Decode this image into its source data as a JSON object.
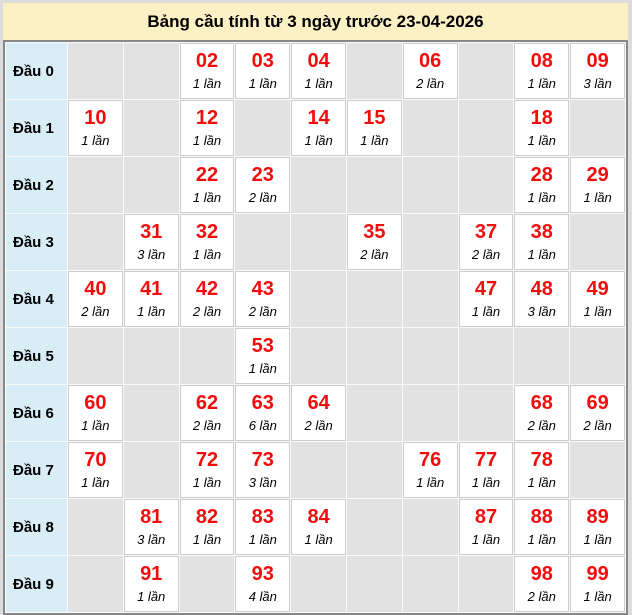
{
  "title": "Bảng cầu tính từ 3 ngày trước 23-04-2026",
  "colors": {
    "page_bg": "#dcdcdc",
    "title_bg": "#fcf1c5",
    "table_border": "#878787",
    "grid_bg": "#fafafa",
    "row_header_bg": "#d9edf7",
    "empty_cell_bg": "#e2e2e2",
    "filled_cell_bg": "#ffffff",
    "filled_cell_border": "#cccccc",
    "number_color": "#f20d0d",
    "text_color": "#000000"
  },
  "rows": [
    {
      "label": "Đầu 0",
      "cells": [
        null,
        null,
        {
          "number": "02",
          "count": "1 lần"
        },
        {
          "number": "03",
          "count": "1 lần"
        },
        {
          "number": "04",
          "count": "1 lần"
        },
        null,
        {
          "number": "06",
          "count": "2 lần"
        },
        null,
        {
          "number": "08",
          "count": "1 lần"
        },
        {
          "number": "09",
          "count": "3 lần"
        }
      ]
    },
    {
      "label": "Đầu 1",
      "cells": [
        {
          "number": "10",
          "count": "1 lần"
        },
        null,
        {
          "number": "12",
          "count": "1 lần"
        },
        null,
        {
          "number": "14",
          "count": "1 lần"
        },
        {
          "number": "15",
          "count": "1 lần"
        },
        null,
        null,
        {
          "number": "18",
          "count": "1 lần"
        },
        null
      ]
    },
    {
      "label": "Đầu 2",
      "cells": [
        null,
        null,
        {
          "number": "22",
          "count": "1 lần"
        },
        {
          "number": "23",
          "count": "2 lần"
        },
        null,
        null,
        null,
        null,
        {
          "number": "28",
          "count": "1 lần"
        },
        {
          "number": "29",
          "count": "1 lần"
        }
      ]
    },
    {
      "label": "Đầu 3",
      "cells": [
        null,
        {
          "number": "31",
          "count": "3 lần"
        },
        {
          "number": "32",
          "count": "1 lần"
        },
        null,
        null,
        {
          "number": "35",
          "count": "2 lần"
        },
        null,
        {
          "number": "37",
          "count": "2 lần"
        },
        {
          "number": "38",
          "count": "1 lần"
        },
        null
      ]
    },
    {
      "label": "Đầu 4",
      "cells": [
        {
          "number": "40",
          "count": "2 lần"
        },
        {
          "number": "41",
          "count": "1 lần"
        },
        {
          "number": "42",
          "count": "2 lần"
        },
        {
          "number": "43",
          "count": "2 lần"
        },
        null,
        null,
        null,
        {
          "number": "47",
          "count": "1 lần"
        },
        {
          "number": "48",
          "count": "3 lần"
        },
        {
          "number": "49",
          "count": "1 lần"
        }
      ]
    },
    {
      "label": "Đầu 5",
      "cells": [
        null,
        null,
        null,
        {
          "number": "53",
          "count": "1 lần"
        },
        null,
        null,
        null,
        null,
        null,
        null
      ]
    },
    {
      "label": "Đầu 6",
      "cells": [
        {
          "number": "60",
          "count": "1 lần"
        },
        null,
        {
          "number": "62",
          "count": "2 lần"
        },
        {
          "number": "63",
          "count": "6 lần"
        },
        {
          "number": "64",
          "count": "2 lần"
        },
        null,
        null,
        null,
        {
          "number": "68",
          "count": "2 lần"
        },
        {
          "number": "69",
          "count": "2 lần"
        }
      ]
    },
    {
      "label": "Đầu 7",
      "cells": [
        {
          "number": "70",
          "count": "1 lần"
        },
        null,
        {
          "number": "72",
          "count": "1 lần"
        },
        {
          "number": "73",
          "count": "3 lần"
        },
        null,
        null,
        {
          "number": "76",
          "count": "1 lần"
        },
        {
          "number": "77",
          "count": "1 lần"
        },
        {
          "number": "78",
          "count": "1 lần"
        },
        null
      ]
    },
    {
      "label": "Đầu 8",
      "cells": [
        null,
        {
          "number": "81",
          "count": "3 lần"
        },
        {
          "number": "82",
          "count": "1 lần"
        },
        {
          "number": "83",
          "count": "1 lần"
        },
        {
          "number": "84",
          "count": "1 lần"
        },
        null,
        null,
        {
          "number": "87",
          "count": "1 lần"
        },
        {
          "number": "88",
          "count": "1 lần"
        },
        {
          "number": "89",
          "count": "1 lần"
        }
      ]
    },
    {
      "label": "Đầu 9",
      "cells": [
        null,
        {
          "number": "91",
          "count": "1 lần"
        },
        null,
        {
          "number": "93",
          "count": "4 lần"
        },
        null,
        null,
        null,
        null,
        {
          "number": "98",
          "count": "2 lần"
        },
        {
          "number": "99",
          "count": "1 lần"
        }
      ]
    }
  ]
}
